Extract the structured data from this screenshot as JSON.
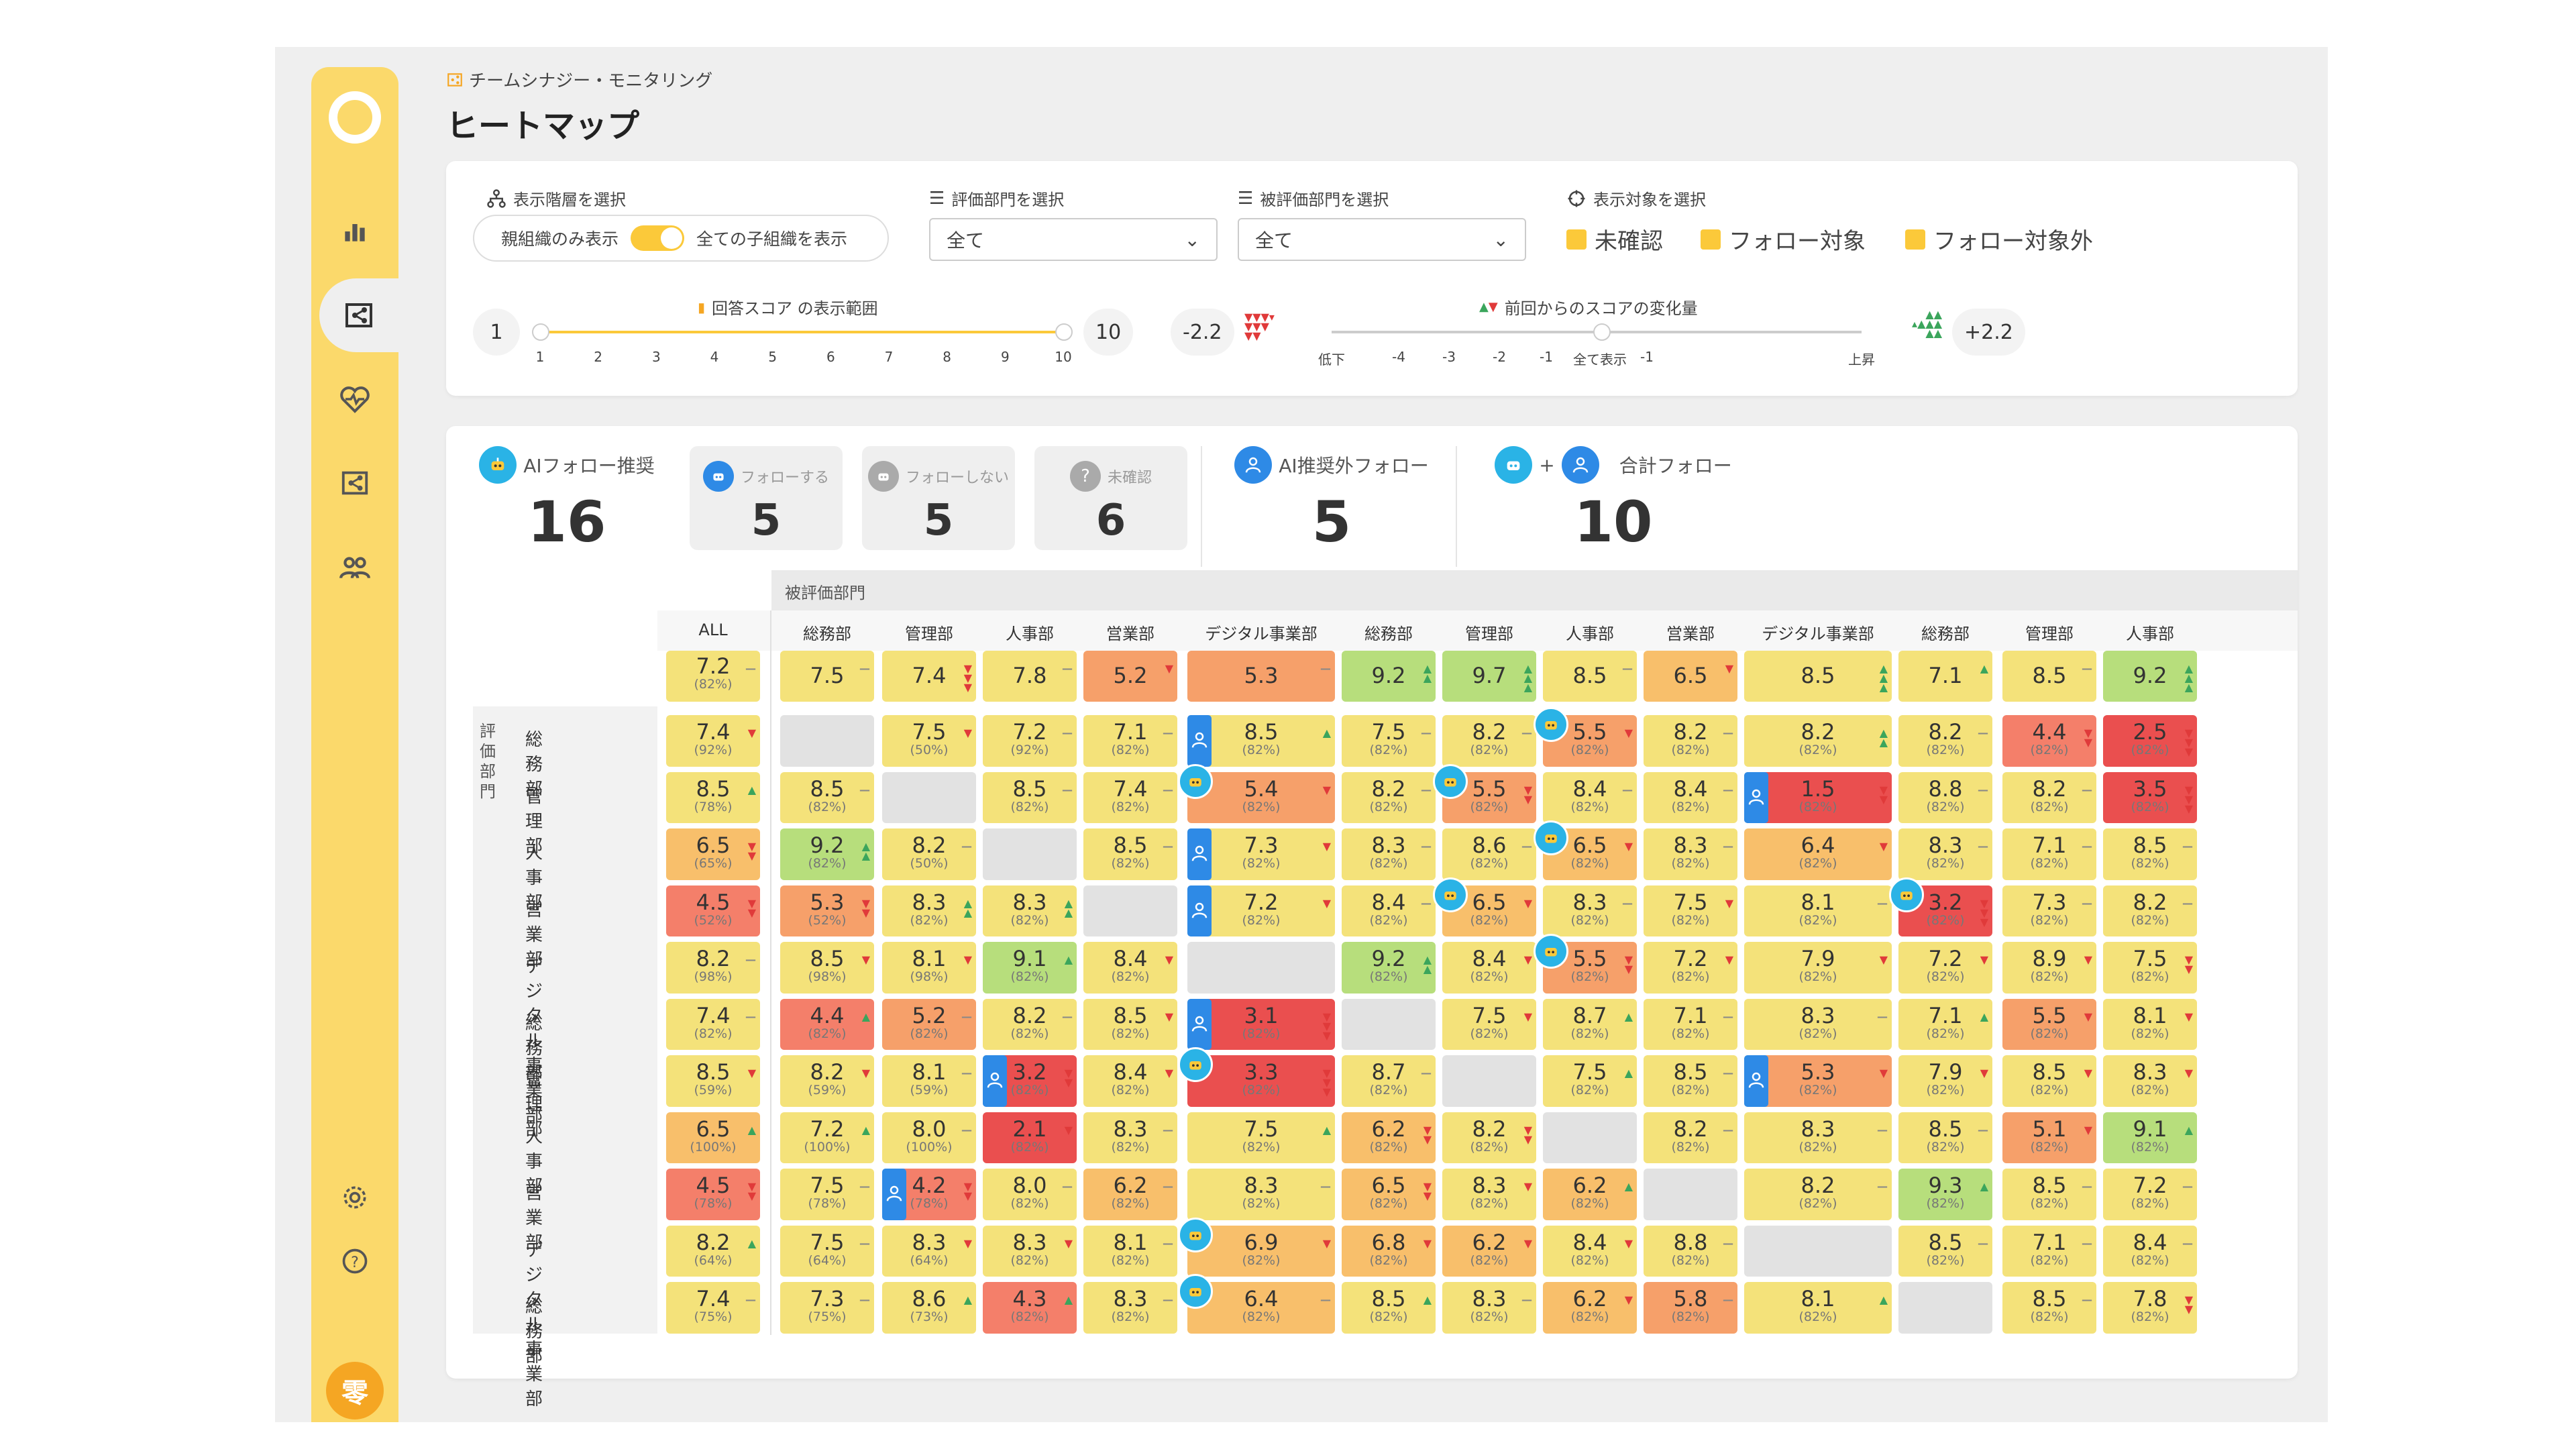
{
  "breadcrumb": "チームシナジー・モニタリング",
  "title": "ヒートマップ",
  "filters": {
    "hierarchy_label": "表示階層を選択",
    "toggle_left": "親組織のみ表示",
    "toggle_right": "全ての子組織を表示",
    "eval_dept_label": "評価部門を選択",
    "eval_dept_value": "全て",
    "evaluated_dept_label": "被評価部門を選択",
    "evaluated_dept_value": "全て",
    "target_label": "表示対象を選択",
    "targets": [
      "未確認",
      "フォロー対象",
      "フォロー対象外"
    ],
    "score_range_label": "回答スコア の表示範囲",
    "score_min": "1",
    "score_max": "10",
    "score_ticks": [
      "1",
      "2",
      "3",
      "4",
      "5",
      "6",
      "7",
      "8",
      "9",
      "10"
    ],
    "change_label": "前回からのスコアの変化量",
    "change_min": "-2.2",
    "change_max": "+2.2",
    "change_ticks": [
      "低下",
      "-4",
      "-3",
      "-2",
      "-1",
      "全て表示",
      "-1",
      "上昇"
    ]
  },
  "summary": {
    "ai_follow_label": "AIフォロー推奨",
    "ai_follow_value": "16",
    "follow_label": "フォローする",
    "follow_value": "5",
    "nofollow_label": "フォローしない",
    "nofollow_value": "5",
    "unconfirmed_label": "未確認",
    "unconfirmed_value": "6",
    "non_ai_label": "AI推奨外フォロー",
    "non_ai_value": "5",
    "plus": "+",
    "total_label": "合計フォロー",
    "total_value": "10"
  },
  "heatmap": {
    "evaluated_header": "被評価部門",
    "evaluator_header": "評価部門",
    "columns": [
      "ALL",
      "総務部",
      "管理部",
      "人事部",
      "営業部",
      "デジタル事業部",
      "総務部",
      "管理部",
      "人事部",
      "営業部",
      "デジタル事業部",
      "総務部",
      "管理部",
      "人事部"
    ],
    "totals": [
      {
        "v": "7.2",
        "p": "(82%)",
        "t": "f"
      },
      {
        "v": "7.5",
        "p": "",
        "t": "f"
      },
      {
        "v": "7.4",
        "p": "",
        "t": "d3"
      },
      {
        "v": "7.8",
        "p": "",
        "t": "f"
      },
      {
        "v": "5.2",
        "p": "",
        "t": "d"
      },
      {
        "v": "5.3",
        "p": "",
        "t": "f"
      },
      {
        "v": "9.2",
        "p": "",
        "t": "u2"
      },
      {
        "v": "9.7",
        "p": "",
        "t": "u3"
      },
      {
        "v": "8.5",
        "p": "",
        "t": "f"
      },
      {
        "v": "6.5",
        "p": "",
        "t": "d"
      },
      {
        "v": "8.5",
        "p": "",
        "t": "u3"
      },
      {
        "v": "7.1",
        "p": "",
        "t": "u"
      },
      {
        "v": "8.5",
        "p": "",
        "t": "f"
      },
      {
        "v": "9.2",
        "p": "",
        "t": "u3"
      }
    ],
    "rows": [
      {
        "label": "総務部",
        "cells": [
          [
            "7.4",
            "(92%)",
            "d"
          ],
          [
            "",
            "",
            ""
          ],
          [
            "7.5",
            "(50%)",
            "d"
          ],
          [
            "7.2",
            "(92%)",
            "f"
          ],
          [
            "7.1",
            "(82%)",
            "f"
          ],
          [
            "8.5",
            "(82%)",
            "u"
          ],
          [
            "7.5",
            "(82%)",
            "f"
          ],
          [
            "8.2",
            "(82%)",
            "f"
          ],
          [
            "5.5",
            "(82%)",
            "d"
          ],
          [
            "8.2",
            "(82%)",
            "f"
          ],
          [
            "8.2",
            "(82%)",
            "u2"
          ],
          [
            "8.2",
            "(82%)",
            "f"
          ],
          [
            "4.4",
            "(82%)",
            "d2"
          ],
          [
            "2.5",
            "(82%)",
            "d3"
          ]
        ]
      },
      {
        "label": "管理部",
        "cells": [
          [
            "8.5",
            "(78%)",
            "u"
          ],
          [
            "8.5",
            "(82%)",
            "f"
          ],
          [
            "",
            "",
            ""
          ],
          [
            "8.5",
            "(82%)",
            "f"
          ],
          [
            "7.4",
            "(82%)",
            "f"
          ],
          [
            "5.4",
            "(82%)",
            "d"
          ],
          [
            "8.2",
            "(82%)",
            "f"
          ],
          [
            "5.5",
            "(82%)",
            "d2"
          ],
          [
            "8.4",
            "(82%)",
            "f"
          ],
          [
            "8.4",
            "(82%)",
            "f"
          ],
          [
            "1.5",
            "(82%)",
            "d2"
          ],
          [
            "8.8",
            "(82%)",
            "f"
          ],
          [
            "8.2",
            "(82%)",
            "f"
          ],
          [
            "3.5",
            "(82%)",
            "d3"
          ]
        ]
      },
      {
        "label": "人事部",
        "cells": [
          [
            "6.5",
            "(65%)",
            "d2"
          ],
          [
            "9.2",
            "(82%)",
            "u2"
          ],
          [
            "8.2",
            "(50%)",
            "f"
          ],
          [
            "",
            "",
            ""
          ],
          [
            "8.5",
            "(82%)",
            "f"
          ],
          [
            "7.3",
            "(82%)",
            "d"
          ],
          [
            "8.3",
            "(82%)",
            "f"
          ],
          [
            "8.6",
            "(82%)",
            "f"
          ],
          [
            "6.5",
            "(82%)",
            "d"
          ],
          [
            "8.3",
            "(82%)",
            "f"
          ],
          [
            "6.4",
            "(82%)",
            "d"
          ],
          [
            "8.3",
            "(82%)",
            "f"
          ],
          [
            "7.1",
            "(82%)",
            "f"
          ],
          [
            "8.5",
            "(82%)",
            "f"
          ]
        ]
      },
      {
        "label": "営業部",
        "cells": [
          [
            "4.5",
            "(52%)",
            "d2"
          ],
          [
            "5.3",
            "(52%)",
            "d2"
          ],
          [
            "8.3",
            "(82%)",
            "u2"
          ],
          [
            "8.3",
            "(82%)",
            "u2"
          ],
          [
            "",
            "",
            ""
          ],
          [
            "7.2",
            "(82%)",
            "d"
          ],
          [
            "8.4",
            "(82%)",
            "f"
          ],
          [
            "6.5",
            "(82%)",
            "d"
          ],
          [
            "8.3",
            "(82%)",
            "f"
          ],
          [
            "7.5",
            "(82%)",
            "d"
          ],
          [
            "8.1",
            "(82%)",
            "f"
          ],
          [
            "3.2",
            "(82%)",
            "d3"
          ],
          [
            "7.3",
            "(82%)",
            "f"
          ],
          [
            "8.2",
            "(82%)",
            "f"
          ]
        ]
      },
      {
        "label": "デジタル事業部",
        "cells": [
          [
            "8.2",
            "(98%)",
            "f"
          ],
          [
            "8.5",
            "(98%)",
            "d"
          ],
          [
            "8.1",
            "(98%)",
            "d"
          ],
          [
            "9.1",
            "(82%)",
            "u"
          ],
          [
            "8.4",
            "(82%)",
            "d"
          ],
          [
            "",
            "",
            ""
          ],
          [
            "9.2",
            "(82%)",
            "u2"
          ],
          [
            "8.4",
            "(82%)",
            "d"
          ],
          [
            "5.5",
            "(82%)",
            "d2"
          ],
          [
            "7.2",
            "(82%)",
            "d"
          ],
          [
            "7.9",
            "(82%)",
            "d"
          ],
          [
            "7.2",
            "(82%)",
            "d"
          ],
          [
            "8.9",
            "(82%)",
            "d"
          ],
          [
            "7.5",
            "(82%)",
            "d2"
          ]
        ]
      },
      {
        "label": "総務部",
        "cells": [
          [
            "7.4",
            "(82%)",
            "f"
          ],
          [
            "4.4",
            "(82%)",
            "u"
          ],
          [
            "5.2",
            "(82%)",
            "f"
          ],
          [
            "8.2",
            "(82%)",
            "f"
          ],
          [
            "8.5",
            "(82%)",
            "d"
          ],
          [
            "3.1",
            "(82%)",
            "d3"
          ],
          [
            "",
            "",
            ""
          ],
          [
            "7.5",
            "(82%)",
            "d"
          ],
          [
            "8.7",
            "(82%)",
            "u"
          ],
          [
            "7.1",
            "(82%)",
            "f"
          ],
          [
            "8.3",
            "(82%)",
            "f"
          ],
          [
            "7.1",
            "(82%)",
            "u"
          ],
          [
            "5.5",
            "(82%)",
            "d"
          ],
          [
            "8.1",
            "(82%)",
            "d"
          ]
        ]
      },
      {
        "label": "管理部",
        "cells": [
          [
            "8.5",
            "(59%)",
            "d"
          ],
          [
            "8.2",
            "(59%)",
            "d"
          ],
          [
            "8.1",
            "(59%)",
            "f"
          ],
          [
            "3.2",
            "(82%)",
            "d2"
          ],
          [
            "8.4",
            "(82%)",
            "d"
          ],
          [
            "3.3",
            "(82%)",
            "d3"
          ],
          [
            "8.7",
            "(82%)",
            "f"
          ],
          [
            "",
            "",
            ""
          ],
          [
            "7.5",
            "(82%)",
            "u"
          ],
          [
            "8.5",
            "(82%)",
            "f"
          ],
          [
            "5.3",
            "(82%)",
            "d"
          ],
          [
            "7.9",
            "(82%)",
            "d"
          ],
          [
            "8.5",
            "(82%)",
            "d"
          ],
          [
            "8.3",
            "(82%)",
            "d"
          ]
        ]
      },
      {
        "label": "人事部",
        "cells": [
          [
            "6.5",
            "(100%)",
            "u"
          ],
          [
            "7.2",
            "(100%)",
            "u"
          ],
          [
            "8.0",
            "(100%)",
            "f"
          ],
          [
            "2.1",
            "(82%)",
            "d"
          ],
          [
            "8.3",
            "(82%)",
            "f"
          ],
          [
            "7.5",
            "(82%)",
            "u"
          ],
          [
            "6.2",
            "(82%)",
            "d2"
          ],
          [
            "8.2",
            "(82%)",
            "d2"
          ],
          [
            "",
            "",
            ""
          ],
          [
            "8.2",
            "(82%)",
            "f"
          ],
          [
            "8.3",
            "(82%)",
            "f"
          ],
          [
            "8.5",
            "(82%)",
            "f"
          ],
          [
            "5.1",
            "(82%)",
            "d"
          ],
          [
            "9.1",
            "(82%)",
            "u"
          ]
        ]
      },
      {
        "label": "営業部",
        "cells": [
          [
            "4.5",
            "(78%)",
            "d2"
          ],
          [
            "7.5",
            "(78%)",
            "f"
          ],
          [
            "4.2",
            "(78%)",
            "d2"
          ],
          [
            "8.0",
            "(82%)",
            "f"
          ],
          [
            "6.2",
            "(82%)",
            "f"
          ],
          [
            "8.3",
            "(82%)",
            "f"
          ],
          [
            "6.5",
            "(82%)",
            "d2"
          ],
          [
            "8.3",
            "(82%)",
            "d"
          ],
          [
            "6.2",
            "(82%)",
            "u"
          ],
          [
            "",
            "",
            ""
          ],
          [
            "8.2",
            "(82%)",
            "f"
          ],
          [
            "9.3",
            "(82%)",
            "u"
          ],
          [
            "8.5",
            "(82%)",
            "f"
          ],
          [
            "7.2",
            "(82%)",
            "f"
          ]
        ]
      },
      {
        "label": "デジタル事業部",
        "cells": [
          [
            "8.2",
            "(64%)",
            "u"
          ],
          [
            "7.5",
            "(64%)",
            "f"
          ],
          [
            "8.3",
            "(64%)",
            "d"
          ],
          [
            "8.3",
            "(82%)",
            "d"
          ],
          [
            "8.1",
            "(82%)",
            "f"
          ],
          [
            "6.9",
            "(82%)",
            "d"
          ],
          [
            "6.8",
            "(82%)",
            "d"
          ],
          [
            "6.2",
            "(82%)",
            "d"
          ],
          [
            "8.4",
            "(82%)",
            "d"
          ],
          [
            "8.8",
            "(82%)",
            "f"
          ],
          [
            "",
            "",
            ""
          ],
          [
            "8.5",
            "(82%)",
            "f"
          ],
          [
            "7.1",
            "(82%)",
            "f"
          ],
          [
            "8.4",
            "(82%)",
            "f"
          ]
        ]
      },
      {
        "label": "総務部",
        "cells": [
          [
            "7.4",
            "(75%)",
            "f"
          ],
          [
            "7.3",
            "(75%)",
            "f"
          ],
          [
            "8.6",
            "(73%)",
            "u"
          ],
          [
            "4.3",
            "(82%)",
            "u"
          ],
          [
            "8.3",
            "(82%)",
            "f"
          ],
          [
            "6.4",
            "(82%)",
            "f"
          ],
          [
            "8.5",
            "(82%)",
            "u"
          ],
          [
            "8.3",
            "(82%)",
            "f"
          ],
          [
            "6.2",
            "(82%)",
            "d"
          ],
          [
            "5.8",
            "(82%)",
            "f"
          ],
          [
            "8.1",
            "(82%)",
            "u"
          ],
          [
            "",
            "",
            ""
          ],
          [
            "8.5",
            "(82%)",
            "f"
          ],
          [
            "7.8",
            "(82%)",
            "d2"
          ]
        ]
      }
    ]
  },
  "colors": {
    "accent": "#fbc93a",
    "sidebar": "#fbd96b",
    "blue": "#2e8ae6",
    "bot": "#2ab3e6"
  }
}
